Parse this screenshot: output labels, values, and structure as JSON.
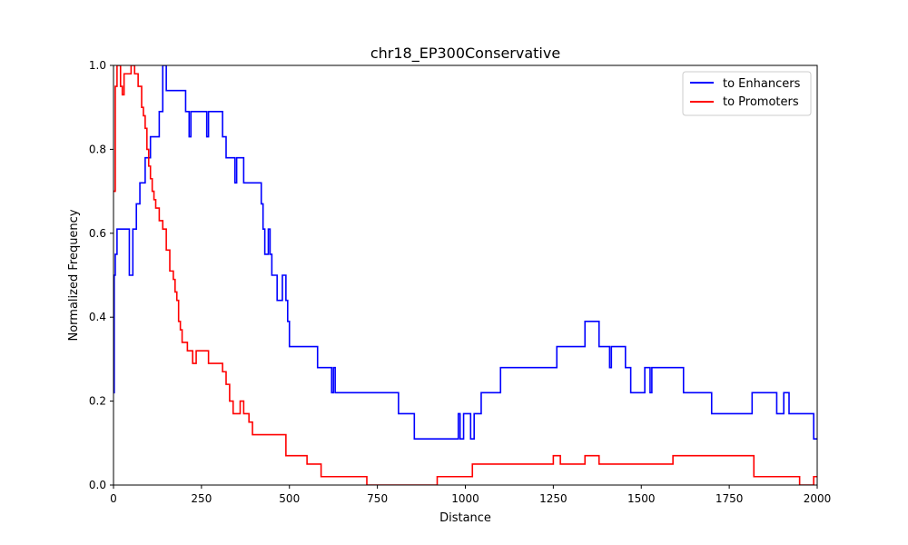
{
  "chart_data": {
    "type": "line",
    "title": "chr18_EP300Conservative",
    "xlabel": "Distance",
    "ylabel": "Normalized Frequency",
    "xlim": [
      0,
      2000
    ],
    "ylim": [
      0,
      1.0
    ],
    "xticks": [
      0,
      250,
      500,
      750,
      1000,
      1250,
      1500,
      1750,
      2000
    ],
    "yticks": [
      0.0,
      0.2,
      0.4,
      0.6,
      0.8,
      1.0
    ],
    "ytick_labels": [
      "0.0",
      "0.2",
      "0.4",
      "0.6",
      "0.8",
      "1.0"
    ],
    "grid": false,
    "legend_position": "top-right",
    "step": true,
    "series": [
      {
        "name": "to Enhancers",
        "color": "#0000ff",
        "x": [
          0,
          2,
          5,
          10,
          20,
          45,
          55,
          65,
          75,
          90,
          105,
          130,
          140,
          145,
          150,
          160,
          205,
          215,
          220,
          230,
          265,
          270,
          275,
          310,
          320,
          345,
          350,
          370,
          420,
          425,
          430,
          440,
          445,
          450,
          455,
          465,
          480,
          490,
          495,
          500,
          505,
          580,
          620,
          625,
          630,
          810,
          855,
          980,
          985,
          995,
          1015,
          1020,
          1025,
          1045,
          1090,
          1100,
          1115,
          1260,
          1340,
          1380,
          1410,
          1415,
          1420,
          1455,
          1470,
          1510,
          1525,
          1530,
          1540,
          1545,
          1550,
          1560,
          1620,
          1700,
          1815,
          1885,
          1905,
          1910,
          1920,
          1990,
          2000
        ],
        "y": [
          0.22,
          0.5,
          0.55,
          0.61,
          0.61,
          0.5,
          0.61,
          0.67,
          0.72,
          0.78,
          0.83,
          0.89,
          1.0,
          1.0,
          0.94,
          0.94,
          0.89,
          0.83,
          0.89,
          0.89,
          0.83,
          0.89,
          0.89,
          0.83,
          0.78,
          0.72,
          0.78,
          0.72,
          0.67,
          0.61,
          0.55,
          0.61,
          0.55,
          0.5,
          0.5,
          0.44,
          0.5,
          0.44,
          0.39,
          0.33,
          0.33,
          0.28,
          0.22,
          0.28,
          0.22,
          0.17,
          0.11,
          0.17,
          0.11,
          0.17,
          0.11,
          0.11,
          0.17,
          0.22,
          0.22,
          0.28,
          0.28,
          0.33,
          0.39,
          0.33,
          0.28,
          0.33,
          0.33,
          0.28,
          0.22,
          0.28,
          0.22,
          0.28,
          0.28,
          0.28,
          0.28,
          0.28,
          0.22,
          0.17,
          0.22,
          0.17,
          0.22,
          0.22,
          0.17,
          0.11,
          0.11
        ]
      },
      {
        "name": "to Promoters",
        "color": "#ff0000",
        "x": [
          0,
          5,
          10,
          15,
          20,
          25,
          30,
          40,
          50,
          60,
          70,
          80,
          85,
          90,
          95,
          100,
          105,
          110,
          115,
          120,
          125,
          130,
          140,
          150,
          160,
          170,
          175,
          180,
          185,
          190,
          195,
          200,
          210,
          225,
          235,
          255,
          270,
          290,
          310,
          320,
          330,
          340,
          360,
          370,
          385,
          395,
          480,
          490,
          500,
          550,
          590,
          680,
          720,
          920,
          1020,
          1250,
          1270,
          1300,
          1340,
          1380,
          1590,
          1690,
          1820,
          1950,
          1960,
          1990,
          2000
        ],
        "y": [
          0.7,
          0.95,
          1.0,
          1.0,
          0.95,
          0.93,
          0.98,
          0.98,
          1.0,
          0.98,
          0.95,
          0.9,
          0.88,
          0.85,
          0.8,
          0.76,
          0.73,
          0.7,
          0.68,
          0.66,
          0.66,
          0.63,
          0.61,
          0.56,
          0.51,
          0.49,
          0.46,
          0.44,
          0.39,
          0.37,
          0.34,
          0.34,
          0.32,
          0.29,
          0.32,
          0.32,
          0.29,
          0.29,
          0.27,
          0.24,
          0.2,
          0.17,
          0.2,
          0.17,
          0.15,
          0.12,
          0.12,
          0.07,
          0.07,
          0.05,
          0.02,
          0.02,
          0.0,
          0.02,
          0.05,
          0.07,
          0.05,
          0.05,
          0.07,
          0.05,
          0.07,
          0.07,
          0.02,
          0.0,
          0.0,
          0.02,
          0.02
        ]
      }
    ]
  }
}
